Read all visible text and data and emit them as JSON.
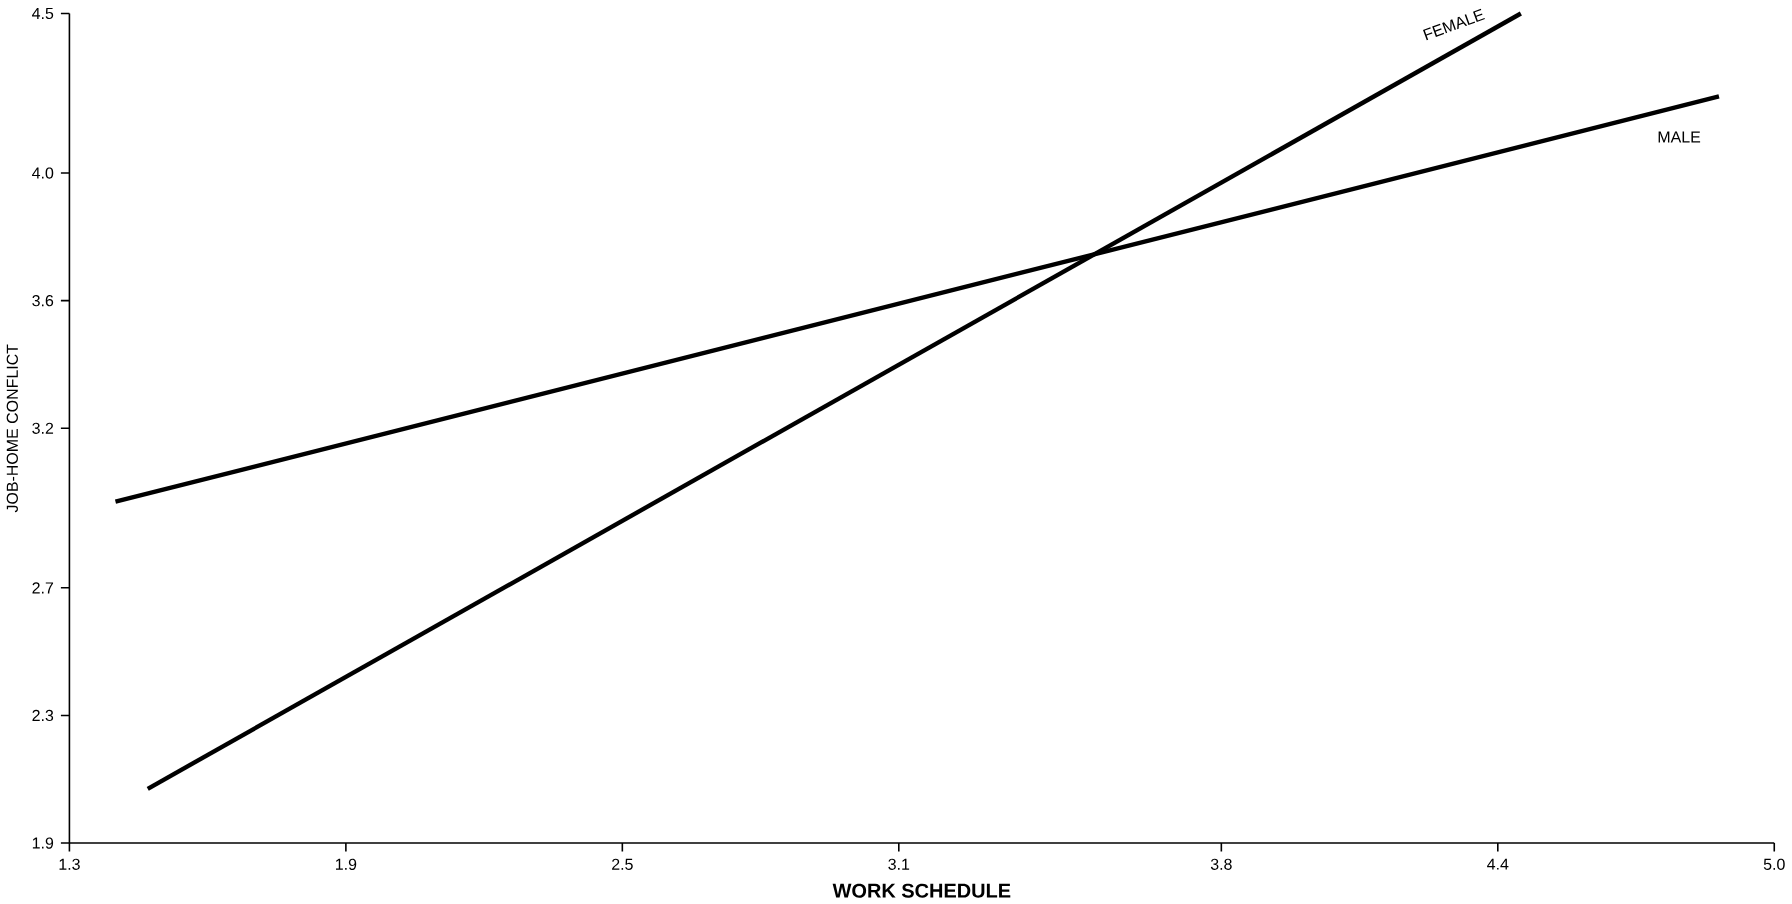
{
  "chart_data": {
    "type": "line",
    "xlabel": "WORK SCHEDULE",
    "ylabel": "JOB-HOME CONFLICT",
    "xlim": [
      1.3,
      5.0
    ],
    "ylim": [
      1.9,
      4.5
    ],
    "xticks": [
      {
        "value": 1.3,
        "label": "1.3"
      },
      {
        "value": 1.9,
        "label": "1.9"
      },
      {
        "value": 2.5,
        "label": "2.5"
      },
      {
        "value": 3.1,
        "label": "3.1"
      },
      {
        "value": 3.8,
        "label": "3.8"
      },
      {
        "value": 4.4,
        "label": "4.4"
      },
      {
        "value": 5.0,
        "label": "5.0"
      }
    ],
    "yticks": [
      {
        "value": 1.9,
        "label": "1.9"
      },
      {
        "value": 2.3,
        "label": "2.3"
      },
      {
        "value": 2.7,
        "label": "2.7"
      },
      {
        "value": 3.2,
        "label": "3.2"
      },
      {
        "value": 3.6,
        "label": "3.6"
      },
      {
        "value": 4.0,
        "label": "4.0"
      },
      {
        "value": 4.5,
        "label": "4.5"
      }
    ],
    "grid": false,
    "legend": false,
    "marker": "none",
    "line_style": "solid",
    "series": [
      {
        "name": "MALE",
        "color": "#000000",
        "x": [
          1.4,
          4.88
        ],
        "values": [
          2.97,
          4.24
        ]
      },
      {
        "name": "FEMALE",
        "color": "#000000",
        "x": [
          1.47,
          4.45
        ],
        "values": [
          2.07,
          4.5
        ]
      }
    ]
  }
}
